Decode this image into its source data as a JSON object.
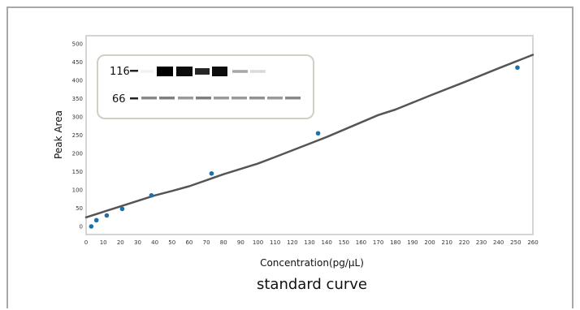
{
  "chart_data": {
    "type": "scatter",
    "title": "",
    "subtitle": "standard curve",
    "xlabel": "Concentration(pg/μL)",
    "ylabel": "Peak Area",
    "xlim": [
      0,
      260
    ],
    "ylim": [
      0,
      500
    ],
    "xticks": [
      0,
      10,
      20,
      30,
      40,
      50,
      60,
      70,
      80,
      90,
      100,
      110,
      120,
      130,
      140,
      150,
      160,
      170,
      180,
      190,
      200,
      210,
      220,
      230,
      240,
      250,
      260
    ],
    "yticks": [
      0,
      50,
      100,
      150,
      200,
      250,
      300,
      350,
      400,
      450,
      500
    ],
    "grid": false,
    "point_color": "#1f6fa8",
    "line_color": "#555555",
    "points": {
      "x": [
        3,
        6,
        12,
        21,
        38,
        73,
        135,
        251
      ],
      "y": [
        0,
        17,
        30,
        48,
        85,
        145,
        255,
        435
      ]
    },
    "trend_line": {
      "x": [
        0,
        20,
        40,
        50,
        60,
        80,
        100,
        110,
        140,
        170,
        180,
        200,
        220,
        240,
        260
      ],
      "y": [
        25,
        55,
        85,
        97,
        110,
        143,
        172,
        190,
        245,
        305,
        320,
        358,
        395,
        433,
        470
      ]
    },
    "inset": {
      "labels": [
        "116",
        "66"
      ],
      "band_color": "#aaaaaa",
      "rows": [
        {
          "label": "116",
          "bands": [
            0.05,
            1.0,
            0.95,
            0.85,
            0.95,
            0.35,
            0.15
          ]
        },
        {
          "label": "66",
          "bands": [
            0.55,
            0.6,
            0.45,
            0.6,
            0.45,
            0.45,
            0.5,
            0.45,
            0.55
          ]
        }
      ]
    }
  }
}
